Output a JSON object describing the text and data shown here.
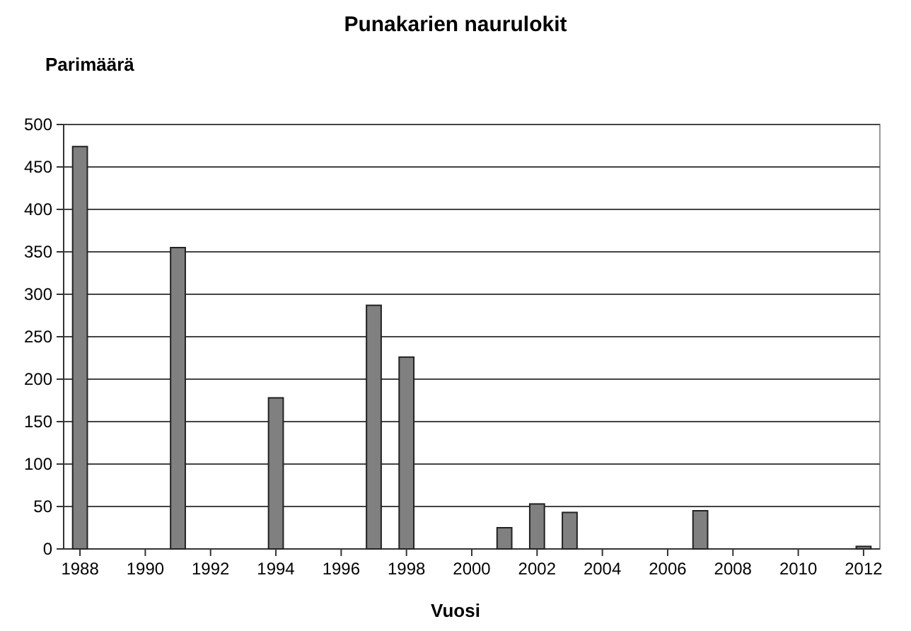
{
  "chart_data": {
    "type": "bar",
    "title": "Punakarien naurulokit",
    "ylabel": "Parimäärä",
    "xlabel": "Vuosi",
    "x": [
      1988,
      1991,
      1994,
      1997,
      1998,
      2001,
      2002,
      2003,
      2007,
      2012
    ],
    "values": [
      474,
      355,
      178,
      287,
      226,
      25,
      53,
      43,
      45,
      3
    ],
    "color": "#808080",
    "xlim": [
      1987.5,
      2012.5
    ],
    "xticks": [
      1988,
      1990,
      1992,
      1994,
      1996,
      1998,
      2000,
      2002,
      2004,
      2006,
      2008,
      2010,
      2012
    ],
    "ylim": [
      0,
      500
    ],
    "yticks": [
      0,
      50,
      100,
      150,
      200,
      250,
      300,
      350,
      400,
      450,
      500
    ],
    "grid": "y"
  }
}
